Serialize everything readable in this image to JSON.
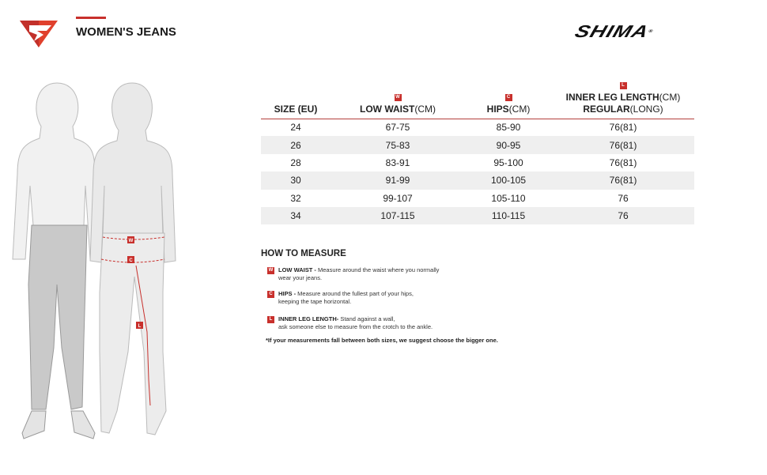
{
  "header": {
    "title": "WOMEN'S JEANS",
    "brand": "SHIMA",
    "registered": "®"
  },
  "colors": {
    "accent": "#c8302c",
    "row_shade": "#efefef"
  },
  "table": {
    "columns": [
      {
        "badge": "",
        "label": "SIZE (EU)",
        "unit": ""
      },
      {
        "badge": "W",
        "label": "LOW WAIST",
        "unit": "(CM)"
      },
      {
        "badge": "C",
        "label": "HIPS",
        "unit": "(CM)"
      },
      {
        "badge": "L",
        "label": "INNER LEG LENGTH",
        "unit": "(CM)",
        "label2": "REGULAR",
        "unit2": "(LONG)"
      }
    ],
    "rows": [
      [
        "24",
        "67-75",
        "85-90",
        "76(81)"
      ],
      [
        "26",
        "75-83",
        "90-95",
        "76(81)"
      ],
      [
        "28",
        "83-91",
        "95-100",
        "76(81)"
      ],
      [
        "30",
        "91-99",
        "100-105",
        "76(81)"
      ],
      [
        "32",
        "99-107",
        "105-110",
        "76"
      ],
      [
        "34",
        "107-115",
        "110-115",
        "76"
      ]
    ]
  },
  "how_to": {
    "title": "HOW TO MEASURE",
    "items": [
      {
        "badge": "W",
        "label": "LOW WAIST -",
        "line1": " Measure around the waist where you normally",
        "line2": "wear your jeans."
      },
      {
        "badge": "C",
        "label": "HIPS -",
        "line1": " Measure around the fullest part of your hips,",
        "line2": "keeping the tape horizontal."
      },
      {
        "badge": "L",
        "label": "INNER LEG LENGTH-",
        "line1": " Stand against a wall,",
        "line2": "ask someone else to measure from the crotch to the ankle."
      }
    ],
    "note": "*If your measurements fall between both sizes, we suggest choose the bigger one."
  },
  "figure": {
    "markers": [
      "W",
      "C",
      "L"
    ]
  }
}
